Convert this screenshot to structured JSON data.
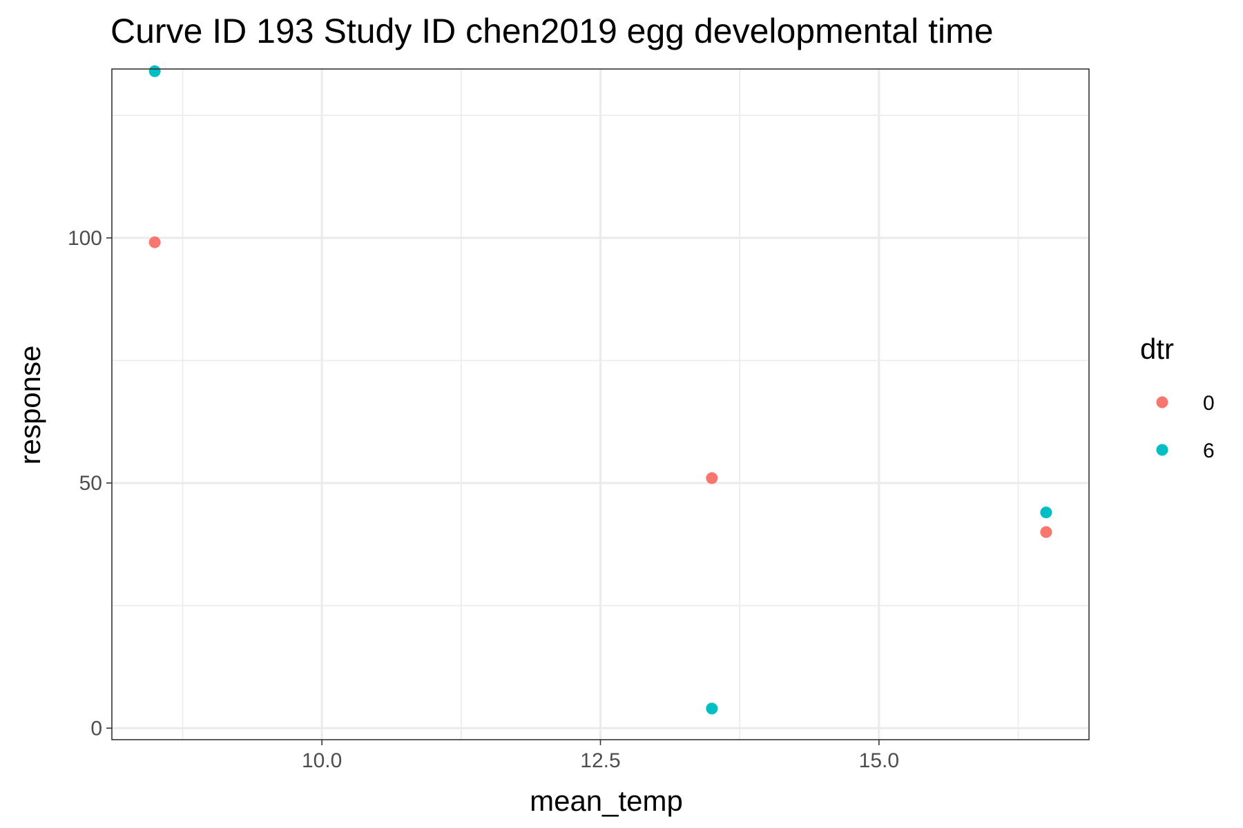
{
  "chart_data": {
    "type": "scatter",
    "title": "Curve ID 193 Study ID chen2019 egg developmental time",
    "xlabel": "mean_temp",
    "ylabel": "response",
    "xlim": [
      8.115,
      16.885
    ],
    "ylim": [
      -2.35,
      134.45
    ],
    "x_ticks": [
      {
        "value": 10.0,
        "label": "10.0"
      },
      {
        "value": 12.5,
        "label": "12.5"
      },
      {
        "value": 15.0,
        "label": "15.0"
      }
    ],
    "x_minor_ticks": [
      8.75,
      11.25,
      13.75,
      16.25
    ],
    "y_ticks": [
      {
        "value": 0,
        "label": "0"
      },
      {
        "value": 50,
        "label": "50"
      },
      {
        "value": 100,
        "label": "100"
      }
    ],
    "y_minor_ticks": [
      25,
      75,
      125
    ],
    "grid": true,
    "legend": {
      "title": "dtr",
      "position": "right"
    },
    "series": [
      {
        "name": "0",
        "color": "#F8766D",
        "points": [
          {
            "x": 8.5,
            "y": 99.1
          },
          {
            "x": 13.5,
            "y": 51.0
          },
          {
            "x": 16.5,
            "y": 40.0
          }
        ]
      },
      {
        "name": "6",
        "color": "#00BFC4",
        "points": [
          {
            "x": 8.5,
            "y": 134.0
          },
          {
            "x": 13.5,
            "y": 4.0
          },
          {
            "x": 16.5,
            "y": 44.0
          }
        ]
      }
    ]
  }
}
